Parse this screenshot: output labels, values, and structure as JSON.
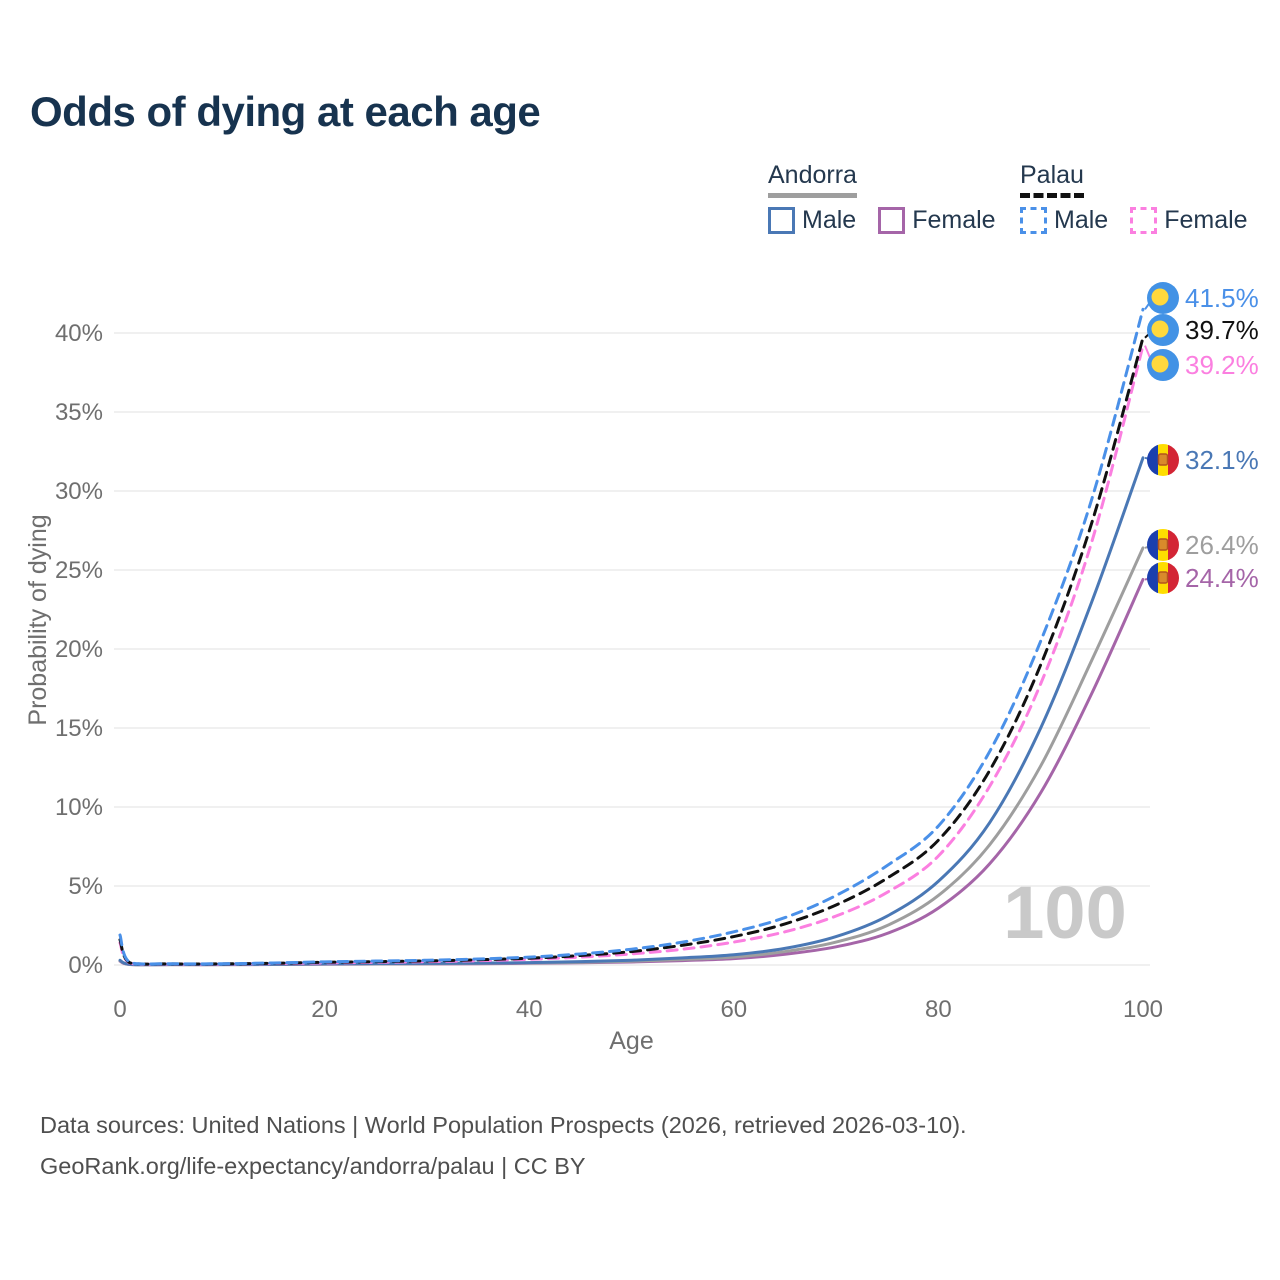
{
  "title": "Odds of dying at each age",
  "legend": {
    "groups": [
      {
        "name": "Andorra",
        "line_style": "solid",
        "underline_color": "#9e9e9e",
        "items": [
          {
            "label": "Male",
            "color": "#4a78b5"
          },
          {
            "label": "Female",
            "color": "#a565a8"
          }
        ]
      },
      {
        "name": "Palau",
        "line_style": "dashed",
        "underline_color": "#111111",
        "items": [
          {
            "label": "Male",
            "color": "#4a90e8"
          },
          {
            "label": "Female",
            "color": "#fb7fe0"
          }
        ]
      }
    ]
  },
  "age_counter": "100",
  "footer": {
    "line1": "Data sources: United Nations | World Population Prospects (2026, retrieved 2026-03-10).",
    "line2": "GeoRank.org/life-expectancy/andorra/palau | CC BY"
  },
  "chart_data": {
    "type": "line",
    "title": "Odds of dying at each age",
    "xlabel": "Age",
    "ylabel": "Probability of dying",
    "xlim": [
      0,
      100
    ],
    "ylim": [
      0,
      43
    ],
    "grid": "horizontal",
    "legend_position": "top-right",
    "x_ticks": [
      0,
      20,
      40,
      60,
      80,
      100
    ],
    "y_ticks": [
      "0%",
      "5%",
      "10%",
      "15%",
      "20%",
      "25%",
      "30%",
      "35%",
      "40%"
    ],
    "y_tick_values": [
      0,
      5,
      10,
      15,
      20,
      25,
      30,
      35,
      40
    ],
    "x": [
      0,
      1,
      5,
      10,
      15,
      20,
      25,
      30,
      35,
      40,
      45,
      50,
      55,
      60,
      65,
      70,
      75,
      80,
      85,
      90,
      95,
      100
    ],
    "series": [
      {
        "name": "Andorra Female",
        "country": "Andorra",
        "sex": "Female",
        "flag": "andorra",
        "color": "#a565a8",
        "dash": "solid",
        "end_value": 24.4,
        "end_label": "24.4%",
        "label_dy": -1.5,
        "values": [
          0.24,
          0.03,
          0.02,
          0.02,
          0.03,
          0.05,
          0.06,
          0.07,
          0.08,
          0.11,
          0.14,
          0.19,
          0.28,
          0.4,
          0.68,
          1.15,
          2.0,
          3.6,
          6.4,
          10.9,
          17.2,
          24.4
        ]
      },
      {
        "name": "Andorra Both sexes",
        "country": "Andorra",
        "sex": "Both",
        "flag": "andorra",
        "color": "#9e9e9e",
        "dash": "solid",
        "end_value": 26.4,
        "end_label": "26.4%",
        "label_dy": -2.9,
        "values": [
          0.27,
          0.035,
          0.025,
          0.025,
          0.04,
          0.06,
          0.07,
          0.08,
          0.1,
          0.13,
          0.17,
          0.24,
          0.35,
          0.5,
          0.85,
          1.45,
          2.5,
          4.4,
          7.6,
          12.6,
          19.3,
          26.4
        ]
      },
      {
        "name": "Andorra Male",
        "country": "Andorra",
        "sex": "Male",
        "flag": "andorra",
        "color": "#4a78b5",
        "dash": "solid",
        "end_value": 32.1,
        "end_label": "32.1%",
        "label_dy": 2.2,
        "values": [
          0.3,
          0.04,
          0.03,
          0.03,
          0.05,
          0.08,
          0.09,
          0.1,
          0.12,
          0.15,
          0.21,
          0.3,
          0.45,
          0.65,
          1.05,
          1.8,
          3.1,
          5.3,
          9.0,
          15.0,
          23.0,
          32.1
        ]
      },
      {
        "name": "Palau Female",
        "country": "Palau",
        "sex": "Female",
        "flag": "palau",
        "color": "#fb7fe0",
        "dash": "dashed",
        "end_value": 39.2,
        "end_label": "39.2%",
        "label_dy": 19.4,
        "values": [
          1.4,
          0.11,
          0.06,
          0.06,
          0.09,
          0.13,
          0.17,
          0.21,
          0.27,
          0.36,
          0.5,
          0.7,
          1.0,
          1.45,
          2.1,
          3.1,
          4.6,
          6.9,
          11.3,
          17.8,
          26.8,
          39.2
        ]
      },
      {
        "name": "Palau Both sexes",
        "country": "Palau",
        "sex": "Both",
        "flag": "palau",
        "color": "#111111",
        "dash": "dashed",
        "end_value": 39.7,
        "end_label": "39.7%",
        "label_dy": -7.7,
        "values": [
          1.6,
          0.13,
          0.07,
          0.07,
          0.11,
          0.17,
          0.21,
          0.26,
          0.33,
          0.43,
          0.6,
          0.85,
          1.25,
          1.8,
          2.6,
          3.8,
          5.5,
          7.9,
          12.3,
          19.0,
          28.0,
          39.7
        ]
      },
      {
        "name": "Palau Male",
        "country": "Palau",
        "sex": "Male",
        "flag": "palau",
        "color": "#4a90e8",
        "dash": "dashed",
        "end_value": 41.5,
        "end_label": "41.5%",
        "label_dy": -11.3,
        "values": [
          1.9,
          0.15,
          0.08,
          0.08,
          0.13,
          0.2,
          0.25,
          0.3,
          0.38,
          0.5,
          0.7,
          1.0,
          1.45,
          2.1,
          3.0,
          4.4,
          6.3,
          8.8,
          13.5,
          20.5,
          29.5,
          41.5
        ]
      }
    ],
    "colors": {
      "grid": "#ebebeb",
      "axis_text": "#6f6f6f",
      "title": "#17334f",
      "palau_flag_blue": "#4292e5",
      "palau_flag_yellow": "#ffd83d",
      "andorra_flag_blue": "#1b3fae",
      "andorra_flag_yellow": "#fedd00",
      "andorra_flag_red": "#d32535",
      "andorra_crest": "#d98a2b"
    }
  }
}
